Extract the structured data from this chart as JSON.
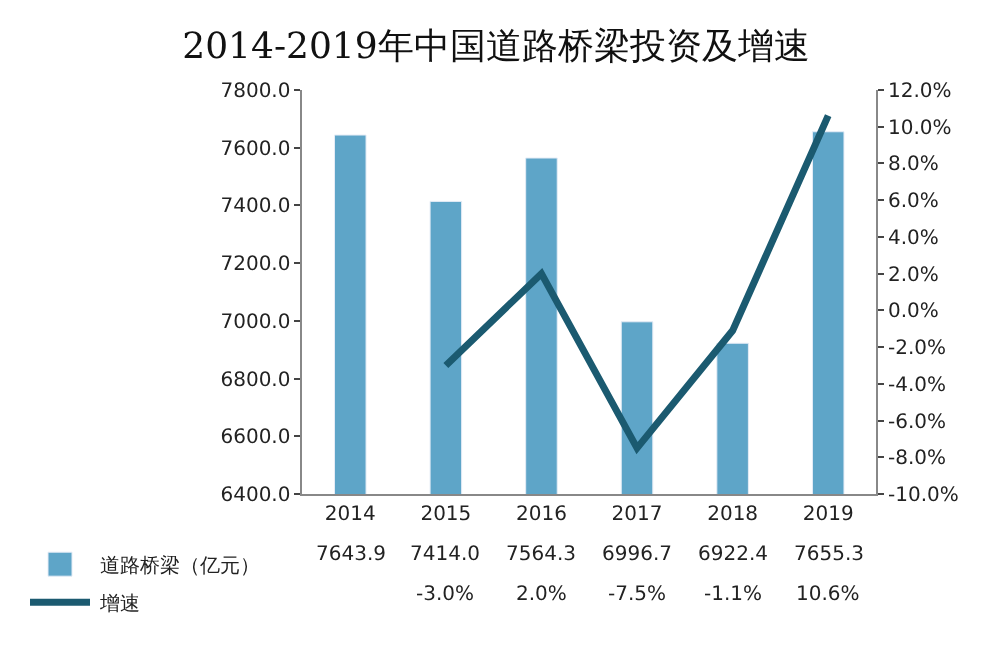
{
  "chart_data": {
    "type": "bar",
    "title": "2014-2019年中国道路桥梁投资及增速",
    "categories": [
      "2014",
      "2015",
      "2016",
      "2017",
      "2018",
      "2019"
    ],
    "series": [
      {
        "name": "道路桥梁（亿元）",
        "color": "#5ea5c8",
        "values": [
          7643.9,
          7414.0,
          7564.3,
          6996.7,
          6922.4,
          7655.3
        ],
        "value_labels": [
          "7643.9",
          "7414.0",
          "7564.3",
          "6996.7",
          "6922.4",
          "7655.3"
        ]
      },
      {
        "name": "增速",
        "type": "line",
        "axis": "y2",
        "color": "#1b5a70",
        "values": [
          null,
          -3.0,
          2.0,
          -7.5,
          -1.1,
          10.6
        ],
        "value_labels": [
          null,
          "-3.0%",
          "2.0%",
          "-7.5%",
          "-1.1%",
          "10.6%"
        ]
      }
    ],
    "ylim": [
      6400,
      7800
    ],
    "yticks": [
      {
        "value": 6400,
        "label": "6400.0"
      },
      {
        "value": 6600,
        "label": "6600.0"
      },
      {
        "value": 6800,
        "label": "6800.0"
      },
      {
        "value": 7000,
        "label": "7000.0"
      },
      {
        "value": 7200,
        "label": "7200.0"
      },
      {
        "value": 7400,
        "label": "7400.0"
      },
      {
        "value": 7600,
        "label": "7600.0"
      },
      {
        "value": 7800,
        "label": "7800.0"
      }
    ],
    "y2lim": [
      -10,
      12
    ],
    "y2ticks": [
      {
        "value": -10,
        "label": "-10.0%"
      },
      {
        "value": -8,
        "label": "-8.0%"
      },
      {
        "value": -6,
        "label": "-6.0%"
      },
      {
        "value": -4,
        "label": "-4.0%"
      },
      {
        "value": -2,
        "label": "-2.0%"
      },
      {
        "value": 0,
        "label": "0.0%"
      },
      {
        "value": 2,
        "label": "2.0%"
      },
      {
        "value": 4,
        "label": "4.0%"
      },
      {
        "value": 6,
        "label": "6.0%"
      },
      {
        "value": 8,
        "label": "8.0%"
      },
      {
        "value": 10,
        "label": "10.0%"
      },
      {
        "value": 12,
        "label": "12.0%"
      }
    ],
    "legend": "bottom left"
  }
}
